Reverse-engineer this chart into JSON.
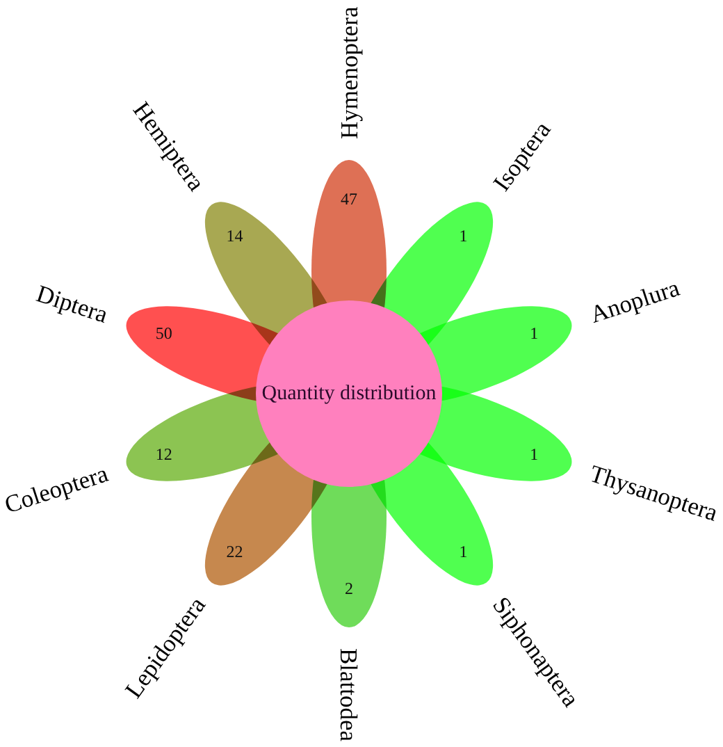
{
  "chart_data": {
    "type": "other",
    "title": "Quantity distribution",
    "categories": [
      "Hymenoptera",
      "Isoptera",
      "Anoplura",
      "Thysanoptera",
      "Siphonaptera",
      "Blattodea",
      "Lepidoptera",
      "Coleoptera",
      "Diptera",
      "Hemiptera"
    ],
    "values": [
      47,
      1,
      1,
      1,
      1,
      2,
      22,
      12,
      50,
      14
    ],
    "colors": [
      "#de7055",
      "#50ff50",
      "#50ff50",
      "#50ff50",
      "#50ff50",
      "#6fdc5a",
      "#c6884e",
      "#8cc452",
      "#ff5050",
      "#a8a852"
    ],
    "data_labels": true
  }
}
